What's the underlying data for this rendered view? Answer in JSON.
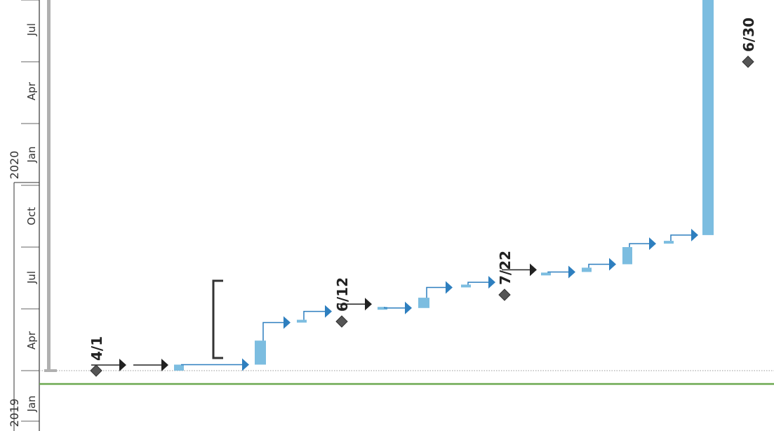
{
  "chart_data": {
    "type": "gantt",
    "orientation": "rotated-vertical-time-axis",
    "time_axis": {
      "years": [
        "2019",
        "2020"
      ],
      "ticks": [
        "Jan",
        "Apr",
        "Jul",
        "Oct",
        "Jan",
        "Apr",
        "Jul"
      ],
      "range": [
        "2019-01",
        "2020-07"
      ]
    },
    "colors": {
      "task_bar": "#7cbde0",
      "task_bar_dark": "#5aa4cf",
      "arrow_blue": "#2e7fbf",
      "arrow_black": "#222222",
      "milestone": "#555555",
      "today_line": "#6aa84f",
      "summary_bar": "#b0b0b0",
      "axis_line": "#333333",
      "gridline": "#999999"
    },
    "today_line": "2018-12-20",
    "summary_task": {
      "start": "2019-04-01",
      "end": "2020-06-30"
    },
    "milestones": [
      {
        "label": "4/1",
        "date": "2019-04-01"
      },
      {
        "label": "6/12",
        "date": "2019-06-12"
      },
      {
        "label": "7/22",
        "date": "2019-07-22"
      },
      {
        "label": "6/30",
        "date": "2020-06-30"
      }
    ],
    "tasks": [
      {
        "start": "2019-04-01",
        "end": "2019-04-01",
        "kind": "arrow-black"
      },
      {
        "start": "2019-04-01",
        "end": "2019-04-01",
        "kind": "arrow-black"
      },
      {
        "start": "2019-04-01",
        "end": "2019-04-08",
        "kind": "bar"
      },
      {
        "start": "2019-04-08",
        "end": "2019-04-08",
        "kind": "arrow-blue"
      },
      {
        "start": "2019-04-01",
        "end": "2019-05-24",
        "kind": "bracket"
      },
      {
        "start": "2019-04-08",
        "end": "2019-05-06",
        "kind": "bar"
      },
      {
        "start": "2019-05-27",
        "end": "2019-05-27",
        "kind": "arrow-blue"
      },
      {
        "start": "2019-05-27",
        "end": "2019-05-27",
        "kind": "bar"
      },
      {
        "start": "2019-06-10",
        "end": "2019-06-10",
        "kind": "arrow-blue"
      },
      {
        "start": "2019-06-12",
        "end": "2019-06-12",
        "kind": "arrow-black"
      },
      {
        "start": "2019-06-12",
        "end": "2019-06-14",
        "kind": "bar"
      },
      {
        "start": "2019-06-14",
        "end": "2019-06-14",
        "kind": "arrow-blue"
      },
      {
        "start": "2019-06-14",
        "end": "2019-06-26",
        "kind": "bar"
      },
      {
        "start": "2019-07-08",
        "end": "2019-07-08",
        "kind": "arrow-blue"
      },
      {
        "start": "2019-07-08",
        "end": "2019-07-08",
        "kind": "bar"
      },
      {
        "start": "2019-07-14",
        "end": "2019-07-14",
        "kind": "arrow-blue"
      },
      {
        "start": "2019-07-22",
        "end": "2019-07-22",
        "kind": "arrow-black"
      },
      {
        "start": "2019-07-22",
        "end": "2019-07-24",
        "kind": "bar"
      },
      {
        "start": "2019-07-26",
        "end": "2019-07-26",
        "kind": "arrow-blue"
      },
      {
        "start": "2019-07-26",
        "end": "2019-08-01",
        "kind": "bar"
      },
      {
        "start": "2019-08-05",
        "end": "2019-08-05",
        "kind": "arrow-blue"
      },
      {
        "start": "2019-08-05",
        "end": "2019-08-25",
        "kind": "bar"
      },
      {
        "start": "2019-08-29",
        "end": "2019-08-29",
        "kind": "arrow-blue"
      },
      {
        "start": "2019-08-29",
        "end": "2019-08-29",
        "kind": "bar"
      },
      {
        "start": "2019-09-09",
        "end": "2019-09-09",
        "kind": "arrow-blue"
      },
      {
        "start": "2019-09-09",
        "end": "2020-06-30",
        "kind": "bar"
      },
      {
        "start": "2020-07-01",
        "end": "2020-07-01",
        "kind": "arrow-blue"
      }
    ]
  }
}
